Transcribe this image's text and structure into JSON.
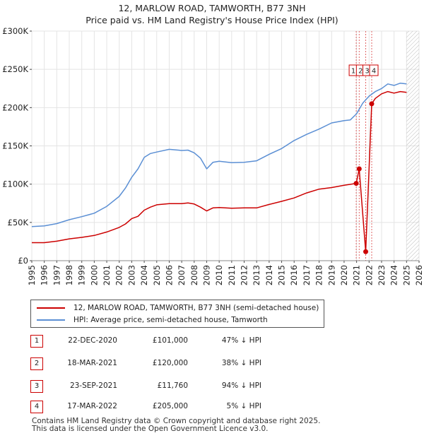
{
  "chart_data": {
    "type": "line",
    "title": "12, MARLOW ROAD, TAMWORTH, B77 3NH",
    "subtitle": "Price paid vs. HM Land Registry's House Price Index (HPI)",
    "xlim": [
      1995,
      2026
    ],
    "ylim": [
      0,
      300000
    ],
    "x_ticks": [
      "1995",
      "1996",
      "1997",
      "1998",
      "1999",
      "2000",
      "2001",
      "2002",
      "2003",
      "2004",
      "2005",
      "2006",
      "2007",
      "2008",
      "2009",
      "2010",
      "2011",
      "2012",
      "2013",
      "2014",
      "2015",
      "2016",
      "2017",
      "2018",
      "2019",
      "2020",
      "2021",
      "2022",
      "2023",
      "2024",
      "2025",
      "2026"
    ],
    "y_ticks": [
      {
        "value": 0,
        "label": "£0"
      },
      {
        "value": 50000,
        "label": "£50K"
      },
      {
        "value": 100000,
        "label": "£100K"
      },
      {
        "value": 150000,
        "label": "£150K"
      },
      {
        "value": 200000,
        "label": "£200K"
      },
      {
        "value": 250000,
        "label": "£250K"
      },
      {
        "value": 300000,
        "label": "£300K"
      }
    ],
    "grid": true,
    "legend_position": "below",
    "future_hatch_from": 2025.0,
    "series": [
      {
        "name": "12, MARLOW ROAD, TAMWORTH, B77 3NH (semi-detached house)",
        "color": "#cc0000",
        "x": [
          1995.0,
          1996.0,
          1997.0,
          1998.0,
          1999.0,
          2000.0,
          2001.0,
          2002.0,
          2002.5,
          2003.0,
          2003.5,
          2004.0,
          2004.5,
          2005.0,
          2006.0,
          2007.0,
          2007.5,
          2008.0,
          2008.5,
          2009.0,
          2009.5,
          2010.0,
          2011.0,
          2012.0,
          2013.0,
          2014.0,
          2015.0,
          2016.0,
          2017.0,
          2018.0,
          2019.0,
          2020.0,
          2020.97,
          2020.97,
          2021.21,
          2021.21,
          2021.73,
          2021.73,
          2022.21,
          2022.21,
          2022.5,
          2023.0,
          2023.5,
          2024.0,
          2024.5,
          2025.0
        ],
        "y": [
          23500,
          23500,
          25500,
          28500,
          30500,
          33000,
          37500,
          43500,
          48000,
          55000,
          58000,
          66000,
          70000,
          73000,
          74500,
          74500,
          75500,
          74000,
          70000,
          65000,
          69000,
          69500,
          68500,
          69000,
          69000,
          73500,
          77500,
          82000,
          88500,
          93500,
          95500,
          98500,
          101000,
          101000,
          120000,
          120000,
          11760,
          11760,
          205000,
          205000,
          212000,
          218000,
          221000,
          219000,
          221000,
          220000
        ]
      },
      {
        "name": "HPI: Average price, semi-detached house, Tamworth",
        "color": "#5b8fd4",
        "x": [
          1995.0,
          1996.0,
          1997.0,
          1998.0,
          1999.0,
          2000.0,
          2001.0,
          2002.0,
          2002.5,
          2003.0,
          2003.5,
          2004.0,
          2004.5,
          2005.0,
          2006.0,
          2007.0,
          2007.5,
          2008.0,
          2008.5,
          2009.0,
          2009.5,
          2010.0,
          2011.0,
          2012.0,
          2013.0,
          2014.0,
          2015.0,
          2016.0,
          2017.0,
          2018.0,
          2019.0,
          2020.0,
          2020.5,
          2021.0,
          2021.5,
          2022.0,
          2022.5,
          2023.0,
          2023.5,
          2024.0,
          2024.5,
          2025.0
        ],
        "y": [
          44500,
          45500,
          48500,
          53500,
          57500,
          62000,
          71000,
          84000,
          95000,
          109000,
          120000,
          135000,
          140000,
          142000,
          145500,
          144000,
          144500,
          141000,
          134000,
          120000,
          128500,
          130000,
          128000,
          128500,
          130500,
          139000,
          146500,
          157000,
          165000,
          172000,
          180000,
          183000,
          184000,
          192000,
          206000,
          215000,
          221000,
          225000,
          231000,
          229000,
          232000,
          231000
        ]
      }
    ],
    "transactions": [
      {
        "n": "1",
        "x": 2020.97,
        "date": "22-DEC-2020",
        "price": 101000,
        "price_label": "£101,000",
        "hpi": "47% ↓ HPI"
      },
      {
        "n": "2",
        "x": 2021.21,
        "date": "18-MAR-2021",
        "price": 120000,
        "price_label": "£120,000",
        "hpi": "38% ↓ HPI"
      },
      {
        "n": "3",
        "x": 2021.73,
        "date": "23-SEP-2021",
        "price": 11760,
        "price_label": "£11,760",
        "hpi": "94% ↓ HPI"
      },
      {
        "n": "4",
        "x": 2022.21,
        "date": "17-MAR-2022",
        "price": 205000,
        "price_label": "£205,000",
        "hpi": "5% ↓ HPI"
      }
    ]
  },
  "legend": {
    "line1": "12, MARLOW ROAD, TAMWORTH, B77 3NH (semi-detached house)",
    "line2": "HPI: Average price, semi-detached house, Tamworth"
  },
  "footer": {
    "line1": "Contains HM Land Registry data © Crown copyright and database right 2025.",
    "line2": "This data is licensed under the Open Government Licence v3.0."
  }
}
